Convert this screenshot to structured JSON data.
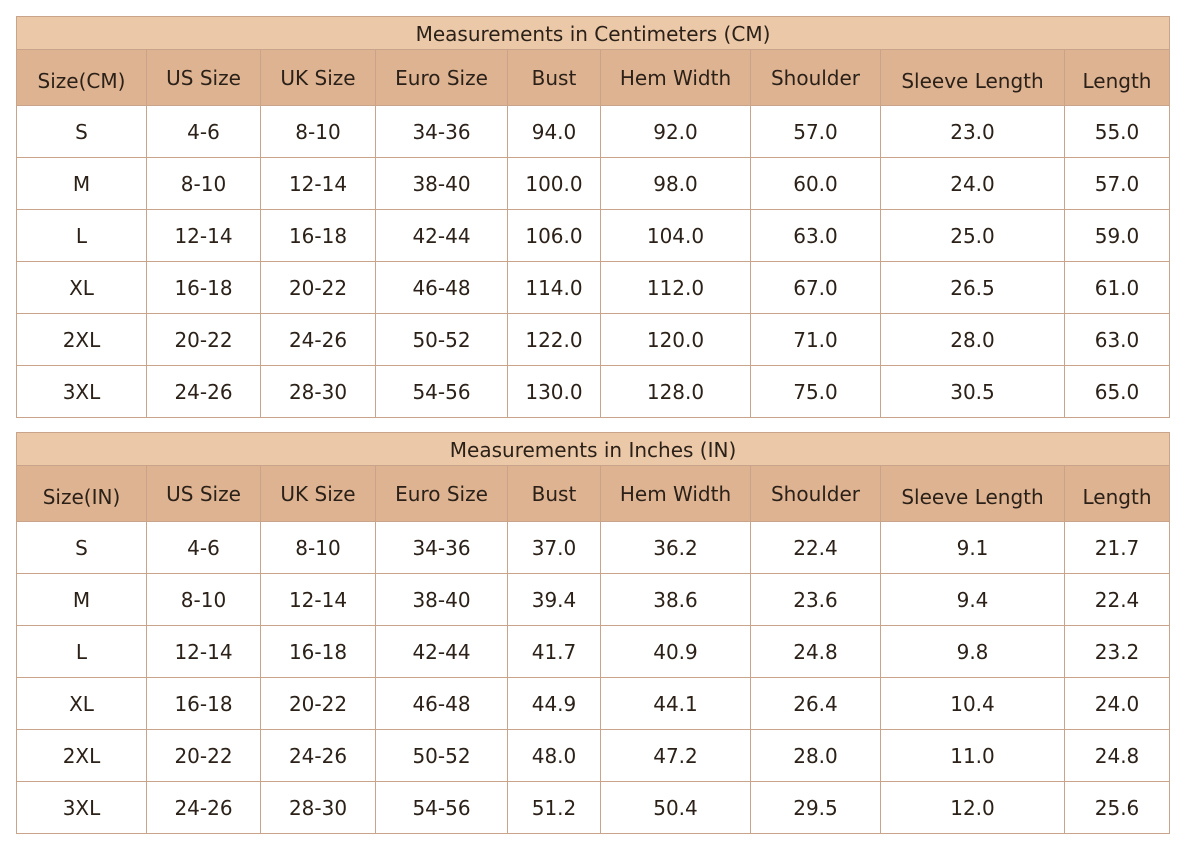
{
  "tables": [
    {
      "title": "Measurements in Centimeters (CM)",
      "headers": [
        "Size(CM)",
        "US Size",
        "UK Size",
        "Euro Size",
        "Bust",
        "Hem Width",
        "Shoulder",
        "Sleeve Length",
        "Length"
      ],
      "rows": [
        [
          "S",
          "4-6",
          "8-10",
          "34-36",
          "94.0",
          "92.0",
          "57.0",
          "23.0",
          "55.0"
        ],
        [
          "M",
          "8-10",
          "12-14",
          "38-40",
          "100.0",
          "98.0",
          "60.0",
          "24.0",
          "57.0"
        ],
        [
          "L",
          "12-14",
          "16-18",
          "42-44",
          "106.0",
          "104.0",
          "63.0",
          "25.0",
          "59.0"
        ],
        [
          "XL",
          "16-18",
          "20-22",
          "46-48",
          "114.0",
          "112.0",
          "67.0",
          "26.5",
          "61.0"
        ],
        [
          "2XL",
          "20-22",
          "24-26",
          "50-52",
          "122.0",
          "120.0",
          "71.0",
          "28.0",
          "63.0"
        ],
        [
          "3XL",
          "24-26",
          "28-30",
          "54-56",
          "130.0",
          "128.0",
          "75.0",
          "30.5",
          "65.0"
        ]
      ]
    },
    {
      "title": "Measurements in Inches (IN)",
      "headers": [
        "Size(IN)",
        "US Size",
        "UK Size",
        "Euro Size",
        "Bust",
        "Hem Width",
        "Shoulder",
        "Sleeve Length",
        "Length"
      ],
      "rows": [
        [
          "S",
          "4-6",
          "8-10",
          "34-36",
          "37.0",
          "36.2",
          "22.4",
          "9.1",
          "21.7"
        ],
        [
          "M",
          "8-10",
          "12-14",
          "38-40",
          "39.4",
          "38.6",
          "23.6",
          "9.4",
          "22.4"
        ],
        [
          "L",
          "12-14",
          "16-18",
          "42-44",
          "41.7",
          "40.9",
          "24.8",
          "9.8",
          "23.2"
        ],
        [
          "XL",
          "16-18",
          "20-22",
          "46-48",
          "44.9",
          "44.1",
          "26.4",
          "10.4",
          "24.0"
        ],
        [
          "2XL",
          "20-22",
          "24-26",
          "50-52",
          "48.0",
          "47.2",
          "28.0",
          "11.0",
          "24.8"
        ],
        [
          "3XL",
          "24-26",
          "28-30",
          "54-56",
          "51.2",
          "50.4",
          "29.5",
          "12.0",
          "25.6"
        ]
      ]
    }
  ]
}
